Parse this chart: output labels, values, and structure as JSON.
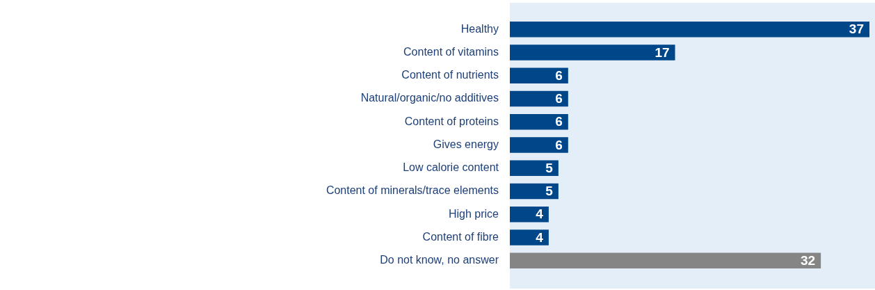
{
  "chart_data": {
    "type": "bar",
    "orientation": "horizontal",
    "data_labels": true,
    "tick_labels": "y",
    "legend": false,
    "categories": [
      "Healthy",
      "Content of vitamins",
      "Content of nutrients",
      "Natural/organic/no additives",
      "Content of proteins",
      "Gives energy",
      "Low calorie content",
      "Content of minerals/trace elements",
      "High price",
      "Content of fibre",
      "Do not know, no answer"
    ],
    "values": [
      37,
      17,
      6,
      6,
      6,
      6,
      5,
      5,
      4,
      4,
      32
    ],
    "colors": [
      "#00478a",
      "#00478a",
      "#00478a",
      "#00478a",
      "#00478a",
      "#00478a",
      "#00478a",
      "#00478a",
      "#00478a",
      "#00478a",
      "#858585"
    ]
  }
}
